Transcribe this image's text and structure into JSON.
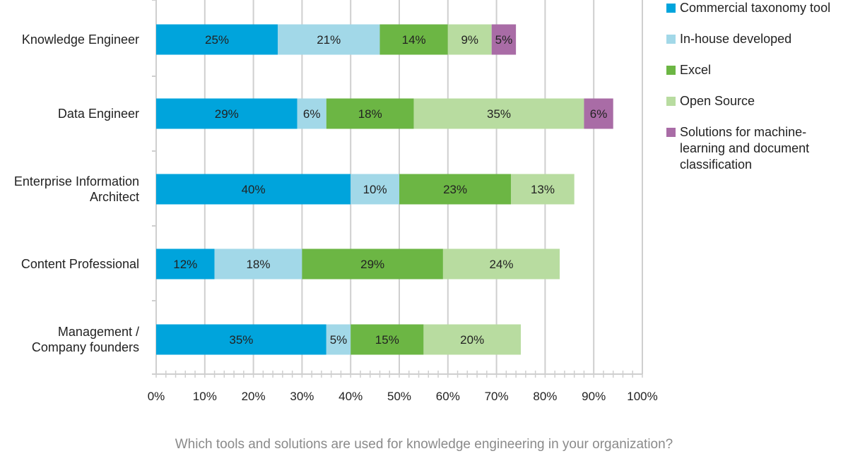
{
  "chart_data": {
    "type": "bar",
    "orientation": "horizontal",
    "stacked": true,
    "categories": [
      [
        "Knowledge Engineer"
      ],
      [
        "Data Engineer"
      ],
      [
        "Enterprise Information",
        "Architect"
      ],
      [
        "Content Professional"
      ],
      [
        "Management /",
        "Company founders"
      ]
    ],
    "series": [
      {
        "name": "Commercial taxonomy tool",
        "color": "#00a4dc",
        "values": [
          25,
          29,
          40,
          12,
          35
        ]
      },
      {
        "name": "In-house developed",
        "color": "#a2d8e8",
        "values": [
          21,
          6,
          10,
          18,
          5
        ]
      },
      {
        "name": "Excel",
        "color": "#6cb644",
        "values": [
          14,
          18,
          23,
          29,
          15
        ]
      },
      {
        "name": "Open Source",
        "color": "#b8dca0",
        "values": [
          9,
          35,
          13,
          24,
          20
        ]
      },
      {
        "name": "Solutions for machine-learning and document classification",
        "color": "#a96ca6",
        "values": [
          5,
          6,
          null,
          null,
          null
        ]
      }
    ],
    "bar_labels": [
      [
        "25%",
        "21%",
        "14%",
        "9%",
        "5%"
      ],
      [
        "29%",
        "6%",
        "18%",
        "35%",
        "6%"
      ],
      [
        "40%",
        "10%",
        "23%",
        "13%",
        null
      ],
      [
        "12%",
        "18%",
        "29%",
        "24%",
        null
      ],
      [
        "35%",
        "5%",
        "15%",
        "20%",
        null
      ]
    ],
    "xlim": [
      0,
      100
    ],
    "xticks": [
      "0%",
      "10%",
      "20%",
      "30%",
      "40%",
      "50%",
      "60%",
      "70%",
      "80%",
      "90%",
      "100%"
    ],
    "grid": true,
    "legend_position": "right",
    "title": ""
  },
  "legend": [
    {
      "label": "Commercial taxonomy tool",
      "color": "#00a4dc"
    },
    {
      "label": "In-house developed",
      "color": "#a2d8e8"
    },
    {
      "label": "Excel",
      "color": "#6cb644"
    },
    {
      "label": "Open Source",
      "color": "#b8dca0"
    },
    {
      "label": "Solutions for machine-learning and document classification",
      "color": "#a96ca6"
    }
  ],
  "caption": "Which tools and solutions are used for knowledge engineering in your organization?"
}
